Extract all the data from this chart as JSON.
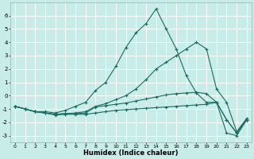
{
  "xlabel": "Humidex (Indice chaleur)",
  "background_color": "#c8ece8",
  "grid_color": "#ffffff",
  "line_color": "#1a6b60",
  "xlim": [
    -0.5,
    23.5
  ],
  "ylim": [
    -3.5,
    7.0
  ],
  "yticks": [
    -3,
    -2,
    -1,
    0,
    1,
    2,
    3,
    4,
    5,
    6
  ],
  "xticks": [
    0,
    1,
    2,
    3,
    4,
    5,
    6,
    7,
    8,
    9,
    10,
    11,
    12,
    13,
    14,
    15,
    16,
    17,
    18,
    19,
    20,
    21,
    22,
    23
  ],
  "lines": [
    {
      "x": [
        0,
        1,
        2,
        3,
        4,
        5,
        6,
        7,
        8,
        9,
        10,
        11,
        12,
        13,
        14,
        15,
        16,
        17,
        18,
        19,
        20,
        21,
        22,
        23
      ],
      "y": [
        -0.8,
        -1.0,
        -1.2,
        -1.2,
        -1.3,
        -1.1,
        -0.8,
        -0.5,
        0.4,
        1.0,
        2.2,
        3.6,
        4.7,
        5.4,
        6.5,
        5.0,
        3.5,
        1.5,
        0.2,
        -0.5,
        -0.5,
        -2.8,
        -3.0,
        -1.8
      ]
    },
    {
      "x": [
        0,
        1,
        2,
        3,
        4,
        5,
        6,
        7,
        8,
        9,
        10,
        11,
        12,
        13,
        14,
        15,
        16,
        17,
        18,
        19,
        20,
        21,
        22,
        23
      ],
      "y": [
        -0.8,
        -1.0,
        -1.2,
        -1.3,
        -1.4,
        -1.35,
        -1.3,
        -1.2,
        -0.8,
        -0.6,
        -0.3,
        0.0,
        0.5,
        1.2,
        2.0,
        2.5,
        3.0,
        3.5,
        4.0,
        3.5,
        0.5,
        -0.5,
        -2.7,
        -1.7
      ]
    },
    {
      "x": [
        0,
        1,
        2,
        3,
        4,
        5,
        6,
        7,
        8,
        9,
        10,
        11,
        12,
        13,
        14,
        15,
        16,
        17,
        18,
        19,
        20,
        21,
        22,
        23
      ],
      "y": [
        -0.8,
        -1.0,
        -1.2,
        -1.3,
        -1.4,
        -1.35,
        -1.35,
        -1.3,
        -0.85,
        -0.75,
        -0.65,
        -0.55,
        -0.4,
        -0.25,
        -0.1,
        0.05,
        0.15,
        0.2,
        0.25,
        0.15,
        -0.5,
        -1.8,
        -2.8,
        -1.8
      ]
    },
    {
      "x": [
        0,
        1,
        2,
        3,
        4,
        5,
        6,
        7,
        8,
        9,
        10,
        11,
        12,
        13,
        14,
        15,
        16,
        17,
        18,
        19,
        20,
        21,
        22,
        23
      ],
      "y": [
        -0.8,
        -1.0,
        -1.2,
        -1.3,
        -1.45,
        -1.4,
        -1.4,
        -1.4,
        -1.3,
        -1.2,
        -1.1,
        -1.05,
        -1.0,
        -0.95,
        -0.9,
        -0.85,
        -0.8,
        -0.75,
        -0.7,
        -0.65,
        -0.5,
        -1.8,
        -2.8,
        -1.8
      ]
    }
  ]
}
